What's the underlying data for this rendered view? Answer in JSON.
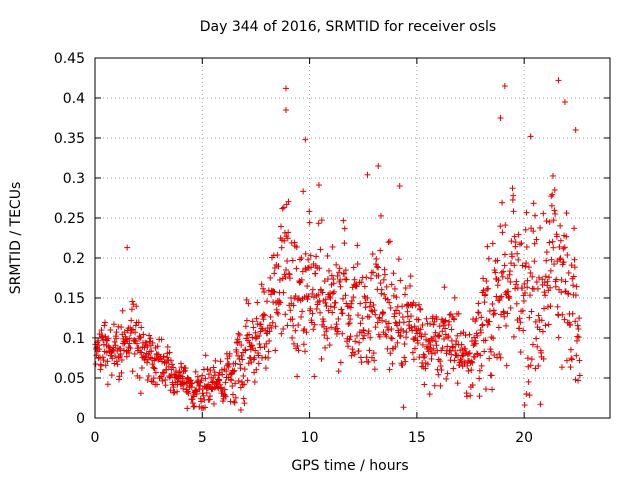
{
  "chart_data": {
    "type": "scatter",
    "title": "Day 344 of 2016, SRMTID for receiver osls",
    "xlabel": "GPS time / hours",
    "ylabel": "SRMTID / TECUs",
    "xlim": [
      0,
      24
    ],
    "ylim": [
      0,
      0.45
    ],
    "xticks": [
      "0",
      "5",
      "10",
      "15",
      "20"
    ],
    "yticks": [
      "0",
      "0.05",
      "0.1",
      "0.15",
      "0.2",
      "0.25",
      "0.3",
      "0.35",
      "0.4",
      "0.45"
    ],
    "grid": true,
    "marker": "plus",
    "color": "#e00000",
    "x_range_observed": [
      0,
      22.6
    ],
    "sample_interval_hours": 0.0167,
    "trend": [
      {
        "x": 0.0,
        "y": 0.085
      },
      {
        "x": 1.0,
        "y": 0.085
      },
      {
        "x": 1.7,
        "y": 0.1
      },
      {
        "x": 2.5,
        "y": 0.07
      },
      {
        "x": 3.5,
        "y": 0.055
      },
      {
        "x": 4.5,
        "y": 0.04
      },
      {
        "x": 5.5,
        "y": 0.04
      },
      {
        "x": 6.5,
        "y": 0.06
      },
      {
        "x": 7.5,
        "y": 0.09
      },
      {
        "x": 8.2,
        "y": 0.13
      },
      {
        "x": 9.0,
        "y": 0.18
      },
      {
        "x": 10.0,
        "y": 0.15
      },
      {
        "x": 11.5,
        "y": 0.13
      },
      {
        "x": 12.5,
        "y": 0.12
      },
      {
        "x": 13.5,
        "y": 0.15
      },
      {
        "x": 14.5,
        "y": 0.12
      },
      {
        "x": 15.5,
        "y": 0.09
      },
      {
        "x": 16.5,
        "y": 0.1
      },
      {
        "x": 17.5,
        "y": 0.07
      },
      {
        "x": 18.5,
        "y": 0.13
      },
      {
        "x": 19.5,
        "y": 0.17
      },
      {
        "x": 20.5,
        "y": 0.14
      },
      {
        "x": 21.5,
        "y": 0.19
      },
      {
        "x": 22.6,
        "y": 0.14
      }
    ],
    "spread": [
      {
        "x": 0.0,
        "s": 0.025
      },
      {
        "x": 2.0,
        "s": 0.035
      },
      {
        "x": 4.0,
        "s": 0.018
      },
      {
        "x": 6.0,
        "s": 0.022
      },
      {
        "x": 8.0,
        "s": 0.05
      },
      {
        "x": 9.0,
        "s": 0.09
      },
      {
        "x": 11.0,
        "s": 0.07
      },
      {
        "x": 13.0,
        "s": 0.07
      },
      {
        "x": 14.5,
        "s": 0.06
      },
      {
        "x": 16.0,
        "s": 0.04
      },
      {
        "x": 17.5,
        "s": 0.035
      },
      {
        "x": 19.0,
        "s": 0.09
      },
      {
        "x": 21.0,
        "s": 0.09
      },
      {
        "x": 22.6,
        "s": 0.07
      }
    ],
    "notable_points": [
      {
        "x": 1.5,
        "y": 0.213
      },
      {
        "x": 8.9,
        "y": 0.412
      },
      {
        "x": 8.9,
        "y": 0.385
      },
      {
        "x": 9.8,
        "y": 0.348
      },
      {
        "x": 12.7,
        "y": 0.304
      },
      {
        "x": 13.2,
        "y": 0.315
      },
      {
        "x": 14.2,
        "y": 0.29
      },
      {
        "x": 19.1,
        "y": 0.415
      },
      {
        "x": 18.9,
        "y": 0.375
      },
      {
        "x": 20.3,
        "y": 0.352
      },
      {
        "x": 21.6,
        "y": 0.422
      },
      {
        "x": 21.9,
        "y": 0.395
      },
      {
        "x": 22.4,
        "y": 0.36
      },
      {
        "x": 20.1,
        "y": 0.03
      },
      {
        "x": 4.3,
        "y": 0.012
      },
      {
        "x": 6.8,
        "y": 0.01
      }
    ]
  }
}
